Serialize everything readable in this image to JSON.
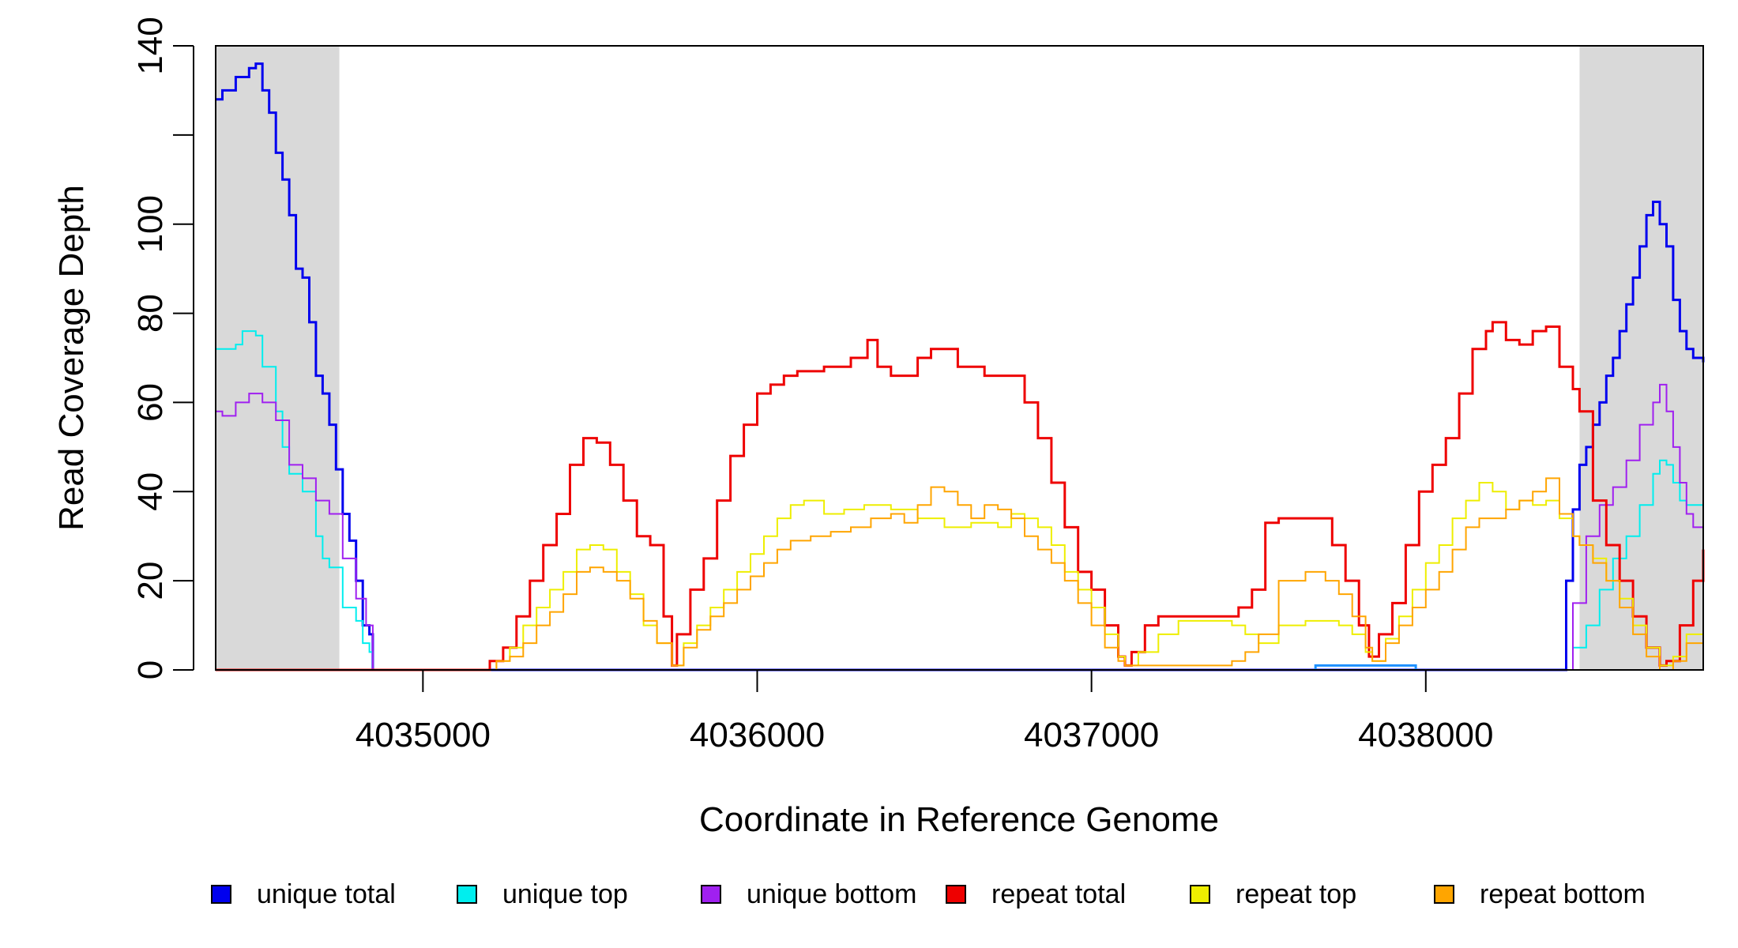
{
  "chart_data": {
    "type": "line",
    "xlabel": "Coordinate in Reference Genome",
    "ylabel": "Read Coverage Depth",
    "xlim": [
      4034380,
      4038830
    ],
    "ylim": [
      0,
      140
    ],
    "x_ticks": [
      4035000,
      4036000,
      4037000,
      4038000
    ],
    "x_tick_labels": [
      "4035000",
      "4036000",
      "4037000",
      "4038000"
    ],
    "y_ticks": [
      0,
      20,
      40,
      60,
      80,
      100,
      120,
      140
    ],
    "y_tick_labels": [
      "0",
      "20",
      "40",
      "60",
      "80",
      "100",
      "",
      "140"
    ],
    "grid": false,
    "shaded_regions": [
      {
        "x": [
          4034380,
          4034750
        ],
        "color": "#d9d9d9"
      },
      {
        "x": [
          4038460,
          4038830
        ],
        "color": "#d9d9d9"
      }
    ],
    "legend_position": "bottom",
    "legend": [
      {
        "label": "unique total",
        "color": "#0000ee"
      },
      {
        "label": "unique top",
        "color": "#00eeee"
      },
      {
        "label": "unique bottom",
        "color": "#a020f0"
      },
      {
        "label": "repeat total",
        "color": "#ee0000"
      },
      {
        "label": "repeat top",
        "color": "#eeee00"
      },
      {
        "label": "repeat bottom",
        "color": "#ffa500"
      }
    ],
    "series": [
      {
        "name": "unique total",
        "color": "#0000ee",
        "width": 3,
        "x": [
          4034380,
          4034400,
          4034440,
          4034480,
          4034500,
          4034520,
          4034540,
          4034560,
          4034580,
          4034600,
          4034620,
          4034640,
          4034660,
          4034680,
          4034700,
          4034720,
          4034740,
          4034760,
          4034780,
          4034800,
          4034820,
          4034840,
          4034850,
          4038400,
          4038420,
          4038440,
          4038460,
          4038480,
          4038500,
          4038520,
          4038540,
          4038560,
          4038580,
          4038600,
          4038620,
          4038640,
          4038660,
          4038680,
          4038700,
          4038720,
          4038740,
          4038760,
          4038780,
          4038800,
          4038830
        ],
        "y": [
          128,
          130,
          133,
          135,
          136,
          130,
          125,
          116,
          110,
          102,
          90,
          88,
          78,
          66,
          62,
          55,
          45,
          35,
          29,
          20,
          10,
          8,
          0,
          0,
          20,
          36,
          46,
          50,
          55,
          60,
          66,
          70,
          76,
          82,
          88,
          95,
          102,
          105,
          100,
          95,
          83,
          76,
          72,
          70,
          69
        ]
      },
      {
        "name": "unique top",
        "color": "#00eeee",
        "width": 2,
        "x": [
          4034380,
          4034440,
          4034460,
          4034500,
          4034520,
          4034560,
          4034580,
          4034600,
          4034640,
          4034680,
          4034700,
          4034720,
          4034760,
          4034800,
          4034820,
          4034840,
          4034850,
          4038400,
          4038440,
          4038480,
          4038520,
          4038560,
          4038600,
          4038640,
          4038680,
          4038700,
          4038720,
          4038740,
          4038760,
          4038780,
          4038800,
          4038830
        ],
        "y": [
          72,
          73,
          76,
          75,
          68,
          58,
          50,
          44,
          40,
          30,
          25,
          23,
          14,
          11,
          6,
          4,
          0,
          0,
          5,
          10,
          18,
          25,
          30,
          37,
          44,
          47,
          46,
          42,
          38,
          37,
          37,
          37
        ]
      },
      {
        "name": "unique bottom",
        "color": "#a020f0",
        "width": 2,
        "x": [
          4034380,
          4034400,
          4034440,
          4034480,
          4034520,
          4034560,
          4034600,
          4034640,
          4034680,
          4034720,
          4034760,
          4034800,
          4034830,
          4034850,
          4038400,
          4038440,
          4038480,
          4038520,
          4038560,
          4038600,
          4038640,
          4038680,
          4038700,
          4038720,
          4038740,
          4038760,
          4038780,
          4038800,
          4038830
        ],
        "y": [
          58,
          57,
          60,
          62,
          60,
          56,
          46,
          43,
          38,
          35,
          25,
          16,
          10,
          0,
          0,
          15,
          30,
          37,
          41,
          47,
          55,
          60,
          64,
          58,
          50,
          42,
          35,
          32,
          32
        ]
      },
      {
        "name": "repeat total",
        "color": "#ee0000",
        "width": 3,
        "x": [
          4034380,
          4035180,
          4035200,
          4035240,
          4035280,
          4035320,
          4035360,
          4035400,
          4035440,
          4035480,
          4035520,
          4035560,
          4035600,
          4035640,
          4035680,
          4035720,
          4035745,
          4035760,
          4035800,
          4035840,
          4035880,
          4035920,
          4035960,
          4036000,
          4036040,
          4036080,
          4036120,
          4036200,
          4036280,
          4036330,
          4036360,
          4036400,
          4036480,
          4036520,
          4036600,
          4036680,
          4036760,
          4036800,
          4036840,
          4036880,
          4036920,
          4036960,
          4037000,
          4037040,
          4037080,
          4037100,
          4037120,
          4037160,
          4037200,
          4037280,
          4037360,
          4037400,
          4037440,
          4037480,
          4037520,
          4037560,
          4037600,
          4037680,
          4037720,
          4037760,
          4037800,
          4037830,
          4037860,
          4037900,
          4037940,
          4037980,
          4038020,
          4038060,
          4038100,
          4038140,
          4038180,
          4038200,
          4038240,
          4038280,
          4038320,
          4038360,
          4038400,
          4038440,
          4038460,
          4038500,
          4038540,
          4038580,
          4038620,
          4038660,
          4038700,
          4038720,
          4038760,
          4038800,
          4038830
        ],
        "y": [
          0,
          0,
          2,
          5,
          12,
          20,
          28,
          35,
          46,
          52,
          51,
          46,
          38,
          30,
          28,
          12,
          1,
          8,
          18,
          25,
          38,
          48,
          55,
          62,
          64,
          66,
          67,
          68,
          70,
          74,
          68,
          66,
          70,
          72,
          68,
          66,
          66,
          60,
          52,
          42,
          32,
          22,
          18,
          10,
          3,
          1,
          4,
          10,
          12,
          12,
          12,
          12,
          14,
          18,
          33,
          34,
          34,
          34,
          28,
          20,
          10,
          3,
          8,
          15,
          28,
          40,
          46,
          52,
          62,
          72,
          76,
          78,
          74,
          73,
          76,
          77,
          68,
          63,
          58,
          38,
          28,
          20,
          12,
          5,
          1,
          2,
          10,
          20,
          27
        ]
      },
      {
        "name": "repeat top",
        "color": "#eeee00",
        "width": 2,
        "x": [
          4034380,
          4035180,
          4035220,
          4035260,
          4035300,
          4035340,
          4035380,
          4035420,
          4035460,
          4035500,
          4035540,
          4035580,
          4035620,
          4035660,
          4035700,
          4035745,
          4035780,
          4035820,
          4035860,
          4035900,
          4035940,
          4035980,
          4036020,
          4036060,
          4036100,
          4036140,
          4036200,
          4036260,
          4036320,
          4036400,
          4036480,
          4036560,
          4036640,
          4036720,
          4036760,
          4036800,
          4036840,
          4036880,
          4036920,
          4036960,
          4037000,
          4037040,
          4037080,
          4037100,
          4037140,
          4037200,
          4037260,
          4037320,
          4037380,
          4037420,
          4037460,
          4037500,
          4037560,
          4037640,
          4037700,
          4037740,
          4037780,
          4037820,
          4037840,
          4037880,
          4037920,
          4037960,
          4038000,
          4038040,
          4038080,
          4038120,
          4038160,
          4038200,
          4038240,
          4038280,
          4038320,
          4038360,
          4038400,
          4038440,
          4038460,
          4038500,
          4038540,
          4038580,
          4038620,
          4038660,
          4038700,
          4038740,
          4038780,
          4038830
        ],
        "y": [
          0,
          0,
          2,
          5,
          10,
          14,
          18,
          22,
          27,
          28,
          27,
          22,
          17,
          10,
          6,
          1,
          6,
          10,
          14,
          18,
          22,
          26,
          30,
          34,
          37,
          38,
          35,
          36,
          37,
          36,
          34,
          32,
          33,
          32,
          35,
          34,
          32,
          28,
          22,
          18,
          14,
          8,
          3,
          1,
          4,
          8,
          11,
          11,
          11,
          10,
          8,
          6,
          10,
          11,
          11,
          10,
          8,
          4,
          2,
          7,
          12,
          18,
          24,
          28,
          34,
          38,
          42,
          40,
          36,
          38,
          37,
          38,
          34,
          30,
          28,
          25,
          20,
          16,
          10,
          5,
          1,
          3,
          8,
          13
        ]
      },
      {
        "name": "repeat bottom",
        "color": "#ffa500",
        "width": 2,
        "x": [
          4034380,
          4035180,
          4035220,
          4035260,
          4035300,
          4035340,
          4035380,
          4035420,
          4035460,
          4035500,
          4035540,
          4035580,
          4035620,
          4035660,
          4035700,
          4035745,
          4035780,
          4035820,
          4035860,
          4035900,
          4035940,
          4035980,
          4036020,
          4036060,
          4036100,
          4036160,
          4036220,
          4036280,
          4036340,
          4036400,
          4036440,
          4036480,
          4036520,
          4036560,
          4036600,
          4036640,
          4036680,
          4036720,
          4036760,
          4036800,
          4036840,
          4036880,
          4036920,
          4036960,
          4037000,
          4037040,
          4037080,
          4037100,
          4037140,
          4037200,
          4037260,
          4037320,
          4037380,
          4037420,
          4037460,
          4037500,
          4037560,
          4037640,
          4037700,
          4037740,
          4037780,
          4037820,
          4037840,
          4037880,
          4037920,
          4037960,
          4038000,
          4038040,
          4038080,
          4038120,
          4038160,
          4038200,
          4038240,
          4038280,
          4038320,
          4038360,
          4038400,
          4038440,
          4038460,
          4038500,
          4038540,
          4038580,
          4038620,
          4038660,
          4038700,
          4038740,
          4038780,
          4038830
        ],
        "y": [
          0,
          0,
          2,
          3,
          6,
          10,
          13,
          17,
          22,
          23,
          22,
          20,
          16,
          11,
          6,
          1,
          5,
          9,
          12,
          15,
          18,
          21,
          24,
          27,
          29,
          30,
          31,
          32,
          34,
          35,
          33,
          37,
          41,
          40,
          37,
          34,
          37,
          36,
          34,
          30,
          27,
          24,
          20,
          15,
          10,
          5,
          2,
          1,
          1,
          1,
          1,
          1,
          1,
          2,
          4,
          8,
          20,
          22,
          20,
          17,
          12,
          5,
          2,
          6,
          10,
          14,
          18,
          22,
          27,
          32,
          34,
          34,
          36,
          38,
          40,
          43,
          35,
          30,
          28,
          24,
          20,
          14,
          8,
          3,
          0,
          2,
          6,
          11
        ]
      },
      {
        "name": "",
        "color": "#1e90ff",
        "width": 3,
        "x": [
          4037670,
          4037670,
          4037970,
          4037970
        ],
        "y": [
          0,
          1,
          1,
          0
        ]
      }
    ]
  }
}
